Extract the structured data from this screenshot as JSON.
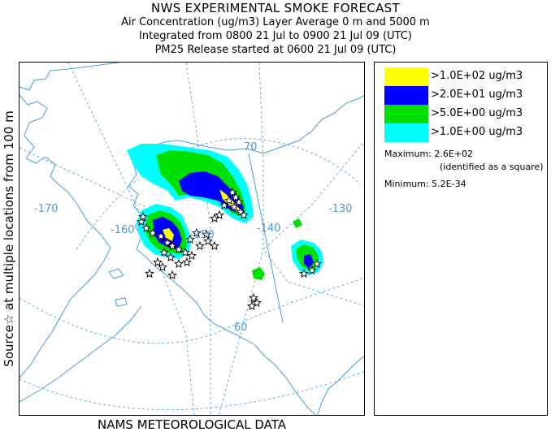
{
  "header": {
    "title": "NWS EXPERIMENTAL SMOKE FORECAST",
    "line2": "Air Concentration (ug/m3) Layer Average    0 m and  5000 m",
    "line3": "Integrated from 0800 21 Jul to 0900 21 Jul 09 (UTC)",
    "line4": "PM25 Release started at 0600 21 Jul 09 (UTC)"
  },
  "side_label": "Source☆ at multiple locations   from    100 m",
  "bottom_label": "NAMS METEOROLOGICAL DATA",
  "map": {
    "graticule_labels": [
      "-170",
      "-160",
      "-150",
      "-140",
      "-130",
      "70",
      "60"
    ]
  },
  "legend": {
    "items": [
      {
        "label": ">1.0E+02 ug/m3",
        "color": "#ffff00"
      },
      {
        "label": ">2.0E+01 ug/m3",
        "color": "#0000ff"
      },
      {
        "label": ">5.0E+00 ug/m3",
        "color": "#00e000"
      },
      {
        "label": ">1.0E+00 ug/m3",
        "color": "#00ffff"
      }
    ],
    "maximum": "Maximum: 2.6E+02",
    "maximum_note": "(identified as a square)",
    "minimum": "Minimum: 5.2E-34"
  },
  "colors": {
    "coast": "#4b9ed6",
    "graticule": "#5aa6d8",
    "source_marker": "#000000"
  }
}
